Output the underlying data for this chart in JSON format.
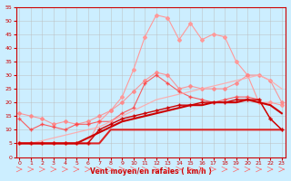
{
  "xlabel": "Vent moyen/en rafales ( km/h )",
  "background_color": "#cceeff",
  "grid_color": "#bbbbbb",
  "x": [
    0,
    1,
    2,
    3,
    4,
    5,
    6,
    7,
    8,
    9,
    10,
    11,
    12,
    13,
    14,
    15,
    16,
    17,
    18,
    19,
    20,
    21,
    22,
    23
  ],
  "series": [
    {
      "color": "#ff9999",
      "alpha": 1.0,
      "linewidth": 0.8,
      "marker": "D",
      "markersize": 2.0,
      "y": [
        5,
        5,
        5,
        5,
        5,
        5,
        5,
        13,
        17,
        22,
        32,
        44,
        52,
        51,
        43,
        49,
        43,
        45,
        44,
        35,
        30,
        20,
        20,
        19
      ]
    },
    {
      "color": "#ff8888",
      "alpha": 0.85,
      "linewidth": 0.8,
      "marker": "D",
      "markersize": 2.0,
      "y": [
        16,
        15,
        14,
        12,
        13,
        12,
        13,
        15,
        17,
        20,
        24,
        28,
        31,
        30,
        25,
        26,
        25,
        25,
        25,
        27,
        30,
        30,
        28,
        20
      ]
    },
    {
      "color": "#ff4444",
      "alpha": 0.85,
      "linewidth": 0.8,
      "marker": "+",
      "markersize": 3.5,
      "y": [
        14,
        10,
        12,
        11,
        10,
        12,
        12,
        13,
        13,
        16,
        18,
        27,
        30,
        27,
        24,
        22,
        21,
        20,
        21,
        22,
        22,
        21,
        14,
        10
      ]
    },
    {
      "color": "#ffaaaa",
      "alpha": 0.9,
      "linewidth": 0.9,
      "marker": null,
      "markersize": 0,
      "y": [
        5,
        5,
        6,
        7,
        8,
        9,
        10,
        11,
        13,
        15,
        17,
        19,
        21,
        22,
        23,
        24,
        25,
        26,
        27,
        28,
        29,
        30,
        28,
        25
      ]
    },
    {
      "color": "#cc0000",
      "alpha": 1.0,
      "linewidth": 1.5,
      "marker": null,
      "markersize": 0,
      "y": [
        5,
        5,
        5,
        5,
        5,
        5,
        7,
        9,
        11,
        13,
        14,
        15,
        16,
        17,
        18,
        19,
        19,
        20,
        20,
        20,
        21,
        20,
        19,
        16
      ]
    },
    {
      "color": "#dd2222",
      "alpha": 1.0,
      "linewidth": 1.5,
      "marker": null,
      "markersize": 0,
      "y": [
        5,
        5,
        5,
        5,
        5,
        5,
        5,
        5,
        10,
        10,
        10,
        10,
        10,
        10,
        10,
        10,
        10,
        10,
        10,
        10,
        10,
        10,
        10,
        10
      ]
    },
    {
      "color": "#cc0000",
      "alpha": 1.0,
      "linewidth": 1.0,
      "marker": "+",
      "markersize": 3.0,
      "y": [
        5,
        5,
        5,
        5,
        5,
        5,
        5,
        10,
        12,
        14,
        15,
        16,
        17,
        18,
        19,
        19,
        20,
        20,
        20,
        21,
        21,
        21,
        14,
        10
      ]
    }
  ],
  "xlim": [
    -0.3,
    23.3
  ],
  "ylim": [
    0,
    55
  ],
  "yticks": [
    0,
    5,
    10,
    15,
    20,
    25,
    30,
    35,
    40,
    45,
    50,
    55
  ],
  "xticks": [
    0,
    1,
    2,
    3,
    4,
    5,
    6,
    7,
    8,
    9,
    10,
    11,
    12,
    13,
    14,
    15,
    16,
    17,
    18,
    19,
    20,
    21,
    22,
    23
  ]
}
